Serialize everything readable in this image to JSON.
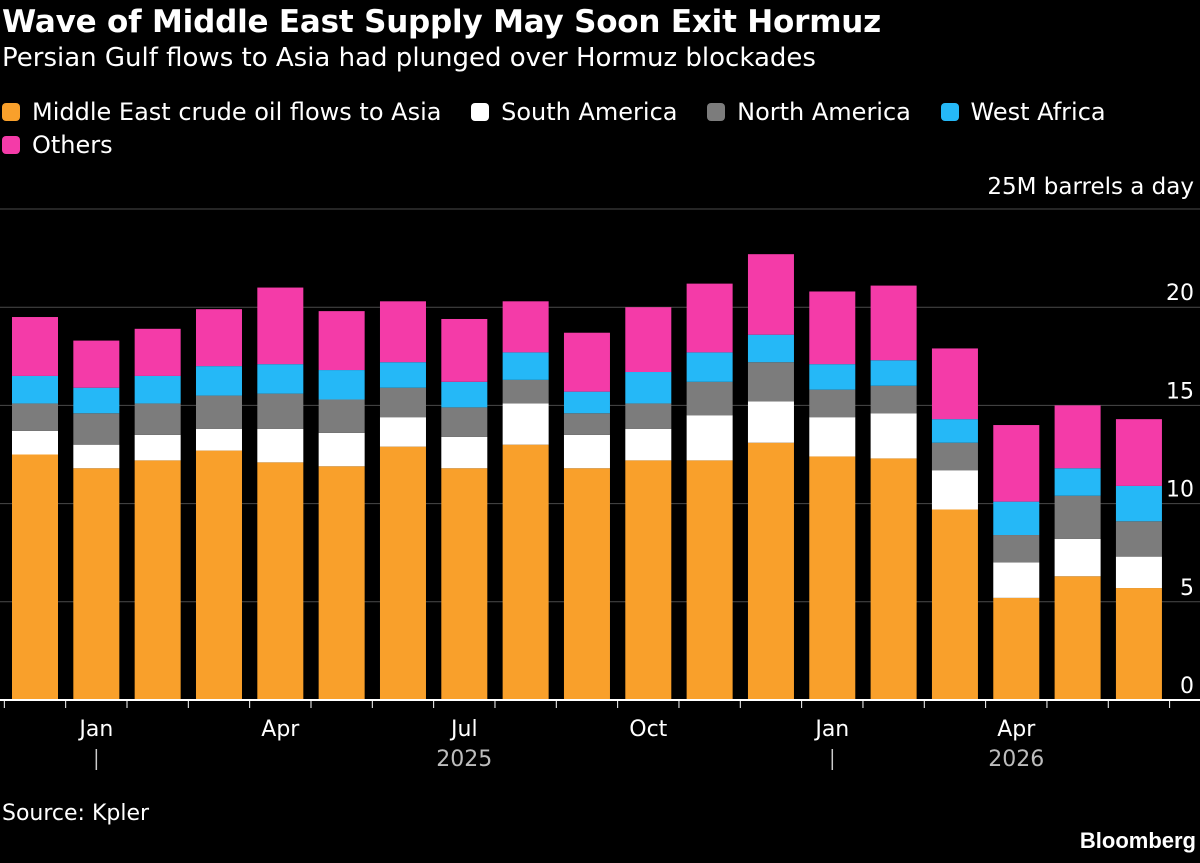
{
  "header": {
    "title": "Wave of Middle East Supply May Soon Exit Hormuz",
    "subtitle": "Persian Gulf flows to Asia had plunged over Hormuz blockades"
  },
  "footer": {
    "source": "Source: Kpler",
    "brand": "Bloomberg"
  },
  "chart_data": {
    "type": "bar",
    "stacked": true,
    "unit_label": "25M barrels a day",
    "ylim": [
      0,
      25
    ],
    "yticks": [
      0,
      5,
      10,
      15,
      20
    ],
    "grid": true,
    "legend_position": "top-left",
    "categories": [
      "Dec 2024",
      "Jan 2025",
      "Feb 2025",
      "Mar 2025",
      "Apr 2025",
      "May 2025",
      "Jun 2025",
      "Jul 2025",
      "Aug 2025",
      "Sep 2025",
      "Oct 2025",
      "Nov 2025",
      "Dec 2025",
      "Jan 2026",
      "Feb 2026",
      "Mar 2026",
      "Apr 2026",
      "May 2026",
      "Jun 2026"
    ],
    "x_tick_labels": [
      {
        "index": 1,
        "label": "Jan"
      },
      {
        "index": 4,
        "label": "Apr"
      },
      {
        "index": 7,
        "label": "Jul"
      },
      {
        "index": 10,
        "label": "Oct"
      },
      {
        "index": 13,
        "label": "Jan"
      },
      {
        "index": 16,
        "label": "Apr"
      }
    ],
    "year_labels": [
      {
        "index": 7,
        "label": "2025"
      },
      {
        "index": 16,
        "label": "2026"
      }
    ],
    "year_separators": [
      1,
      13
    ],
    "series": [
      {
        "name": "Middle East crude oil flows to Asia",
        "color": "#F9A02B",
        "values": [
          12.5,
          11.8,
          12.2,
          12.7,
          12.1,
          11.9,
          12.9,
          11.8,
          13.0,
          11.8,
          12.2,
          12.2,
          13.1,
          12.4,
          12.3,
          9.7,
          5.2,
          6.3,
          5.7
        ]
      },
      {
        "name": "South America",
        "color": "#FFFFFF",
        "values": [
          1.2,
          1.2,
          1.3,
          1.1,
          1.7,
          1.7,
          1.5,
          1.6,
          2.1,
          1.7,
          1.6,
          2.3,
          2.1,
          2.0,
          2.3,
          2.0,
          1.8,
          1.9,
          1.6
        ]
      },
      {
        "name": "North America",
        "color": "#7C7C7C",
        "values": [
          1.4,
          1.6,
          1.6,
          1.7,
          1.8,
          1.7,
          1.5,
          1.5,
          1.2,
          1.1,
          1.3,
          1.7,
          2.0,
          1.4,
          1.4,
          1.4,
          1.4,
          2.2,
          1.8
        ]
      },
      {
        "name": "West Africa",
        "color": "#25B8F7",
        "values": [
          1.4,
          1.3,
          1.4,
          1.5,
          1.5,
          1.5,
          1.3,
          1.3,
          1.4,
          1.1,
          1.6,
          1.5,
          1.4,
          1.3,
          1.3,
          1.2,
          1.7,
          1.4,
          1.8
        ]
      },
      {
        "name": "Others",
        "color": "#F43BA8",
        "values": [
          3.0,
          2.4,
          2.4,
          2.9,
          3.9,
          3.0,
          3.1,
          3.2,
          2.6,
          3.0,
          3.3,
          3.5,
          4.1,
          3.7,
          3.8,
          3.6,
          3.9,
          3.2,
          3.4
        ]
      }
    ]
  }
}
